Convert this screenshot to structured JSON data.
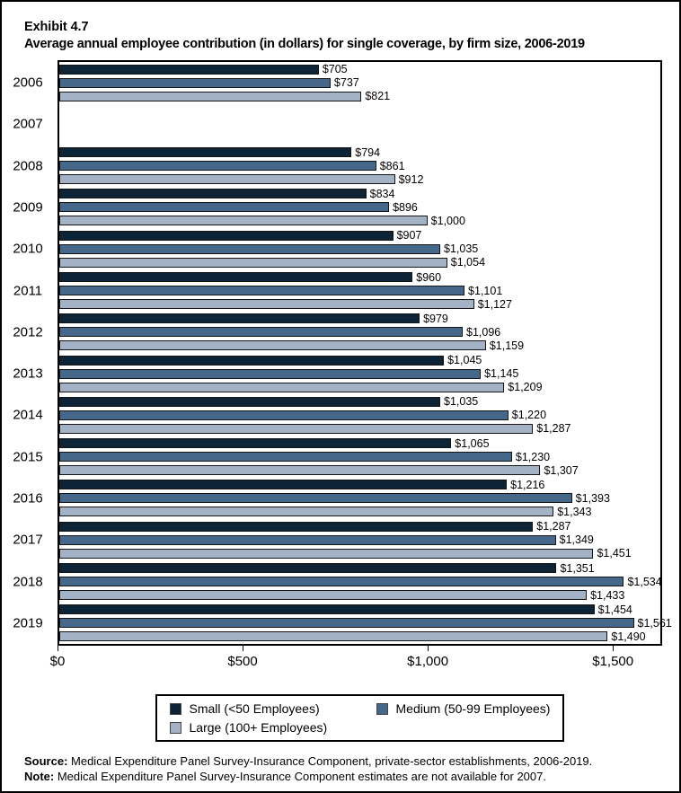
{
  "title": {
    "exhibit": "Exhibit 4.7",
    "text": "Average annual employee contribution (in dollars) for single coverage, by firm size, 2006-2019"
  },
  "chart_data": {
    "type": "bar",
    "orientation": "horizontal",
    "title": "Average annual employee contribution (in dollars) for single coverage, by firm size, 2006-2019",
    "xlabel": "",
    "ylabel": "",
    "grid": false,
    "legend_position": "bottom",
    "categories": [
      "2006",
      "2007",
      "2008",
      "2009",
      "2010",
      "2011",
      "2012",
      "2013",
      "2014",
      "2015",
      "2016",
      "2017",
      "2018",
      "2019"
    ],
    "note": "2007 estimates not available (no bars drawn)",
    "series": [
      {
        "name": "Small (<50 Employees)",
        "color": "#0d2436",
        "values": [
          705,
          null,
          794,
          834,
          907,
          960,
          979,
          1045,
          1035,
          1065,
          1216,
          1287,
          1351,
          1454
        ],
        "labels": [
          "$705",
          "",
          "$794",
          "$834",
          "$907",
          "$960",
          "$979",
          "$1,045",
          "$1,035",
          "$1,065",
          "$1,216",
          "$1,287",
          "$1,351",
          "$1,454"
        ]
      },
      {
        "name": "Medium (50-99 Employees)",
        "color": "#45688a",
        "values": [
          737,
          null,
          861,
          896,
          1035,
          1101,
          1096,
          1145,
          1220,
          1230,
          1393,
          1349,
          1534,
          1561
        ],
        "labels": [
          "$737",
          "",
          "$861",
          "$896",
          "$1,035",
          "$1,101",
          "$1,096",
          "$1,145",
          "$1,220",
          "$1,230",
          "$1,393",
          "$1,349",
          "$1,534",
          "$1,561"
        ]
      },
      {
        "name": "Large (100+ Employees)",
        "color": "#a3b3c5",
        "values": [
          821,
          null,
          912,
          1000,
          1054,
          1127,
          1159,
          1209,
          1287,
          1307,
          1343,
          1451,
          1433,
          1490
        ],
        "labels": [
          "$821",
          "",
          "$912",
          "$1,000",
          "$1,054",
          "$1,127",
          "$1,159",
          "$1,209",
          "$1,287",
          "$1,307",
          "$1,343",
          "$1,451",
          "$1,433",
          "$1,490"
        ]
      }
    ],
    "xaxis": {
      "min": 0,
      "max": 1633,
      "ticks": [
        {
          "value": 0,
          "label": "$0"
        },
        {
          "value": 500,
          "label": "$500"
        },
        {
          "value": 1000,
          "label": "$1,000"
        },
        {
          "value": 1500,
          "label": "$1,500"
        }
      ]
    }
  },
  "legend": {
    "items": [
      {
        "label": "Small (<50 Employees)",
        "color": "#0d2436"
      },
      {
        "label": "Medium (50-99 Employees)",
        "color": "#45688a"
      },
      {
        "label": "Large (100+ Employees)",
        "color": "#a3b3c5"
      }
    ]
  },
  "footer": {
    "source_label": "Source:",
    "source_text": " Medical Expenditure Panel Survey-Insurance Component, private-sector establishments, 2006-2019.",
    "note_label": "Note:",
    "note_text": " Medical Expenditure Panel Survey-Insurance Component estimates are not available for 2007."
  }
}
